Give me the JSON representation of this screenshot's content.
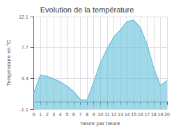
{
  "chart_data": {
    "type": "area",
    "title": "Evolution de la température",
    "xlabel": "heure par heure",
    "ylabel": "Température en °C",
    "x": [
      0,
      1,
      2,
      3,
      4,
      5,
      6,
      7,
      8,
      9,
      10,
      11,
      12,
      13,
      14,
      15,
      16,
      17,
      18,
      19,
      20
    ],
    "values": [
      1.2,
      3.8,
      3.6,
      3.2,
      2.8,
      2.2,
      1.4,
      0.3,
      0.2,
      2.8,
      5.5,
      7.5,
      9.2,
      10.2,
      11.4,
      11.6,
      10.5,
      8.2,
      4.8,
      2.3,
      3.0
    ],
    "color": "#62c0d8",
    "xlim": [
      0,
      20
    ],
    "xticks": [
      0,
      1,
      2,
      3,
      4,
      5,
      6,
      7,
      8,
      9,
      10,
      11,
      12,
      13,
      14,
      15,
      16,
      17,
      18,
      19,
      20
    ],
    "ylim": [
      -1.1,
      12.1
    ],
    "yticks": [
      -1.1,
      3.3,
      7.7,
      12.1
    ],
    "grid": true
  }
}
